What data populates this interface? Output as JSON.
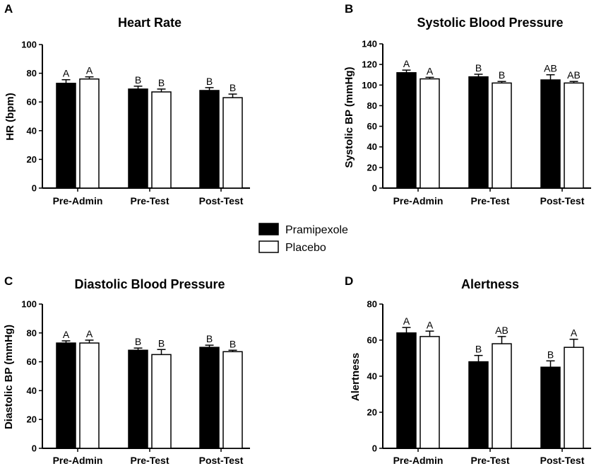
{
  "legend": [
    {
      "name": "Pramipexole",
      "fill": "#000000"
    },
    {
      "name": "Placebo",
      "fill": "#ffffff"
    }
  ],
  "chart_data": [
    {
      "panel": "A",
      "type": "bar",
      "title": "Heart Rate",
      "ylabel": "HR (bpm)",
      "ylim": [
        0,
        100
      ],
      "yticks": [
        0,
        20,
        40,
        60,
        80,
        100
      ],
      "categories": [
        "Pre-Admin",
        "Pre-Test",
        "Post-Test"
      ],
      "series": [
        {
          "name": "Pramipexole",
          "values": [
            73,
            69,
            68
          ],
          "errors": [
            2.5,
            2,
            2
          ],
          "labels": [
            "A",
            "B",
            "B"
          ]
        },
        {
          "name": "Placebo",
          "values": [
            76,
            67,
            63
          ],
          "errors": [
            1.5,
            2,
            2.5
          ],
          "labels": [
            "A",
            "B",
            "B"
          ]
        }
      ]
    },
    {
      "panel": "B",
      "type": "bar",
      "title": "Systolic Blood Pressure",
      "ylabel": "Systolic BP (mmHg)",
      "ylim": [
        0,
        140
      ],
      "yticks": [
        0,
        20,
        40,
        60,
        80,
        100,
        120,
        140
      ],
      "categories": [
        "Pre-Admin",
        "Pre-Test",
        "Post-Test"
      ],
      "series": [
        {
          "name": "Pramipexole",
          "values": [
            112,
            108,
            105
          ],
          "errors": [
            2.5,
            2.5,
            5
          ],
          "labels": [
            "A",
            "B",
            "AB"
          ]
        },
        {
          "name": "Placebo",
          "values": [
            106,
            102,
            102
          ],
          "errors": [
            1.5,
            1.5,
            1.5
          ],
          "labels": [
            "A",
            "B",
            "AB"
          ]
        }
      ]
    },
    {
      "panel": "C",
      "type": "bar",
      "title": "Diastolic Blood Pressure",
      "ylabel": "Diastolic BP (mmHg)",
      "ylim": [
        0,
        100
      ],
      "yticks": [
        0,
        20,
        40,
        60,
        80,
        100
      ],
      "categories": [
        "Pre-Admin",
        "Pre-Test",
        "Post-Test"
      ],
      "series": [
        {
          "name": "Pramipexole",
          "values": [
            73,
            68,
            70
          ],
          "errors": [
            1.5,
            1.5,
            1.5
          ],
          "labels": [
            "A",
            "B",
            "B"
          ]
        },
        {
          "name": "Placebo",
          "values": [
            73,
            65,
            67
          ],
          "errors": [
            2,
            3.5,
            1
          ],
          "labels": [
            "A",
            "B",
            "B"
          ]
        }
      ]
    },
    {
      "panel": "D",
      "type": "bar",
      "title": "Alertness",
      "ylabel": "Alertness",
      "ylim": [
        0,
        80
      ],
      "yticks": [
        0,
        20,
        40,
        60,
        80
      ],
      "categories": [
        "Pre-Admin",
        "Pre-Test",
        "Post-Test"
      ],
      "series": [
        {
          "name": "Pramipexole",
          "values": [
            64,
            48,
            45
          ],
          "errors": [
            3,
            3.5,
            3.5
          ],
          "labels": [
            "A",
            "B",
            "B"
          ]
        },
        {
          "name": "Placebo",
          "values": [
            62,
            58,
            56
          ],
          "errors": [
            3,
            4,
            4.5
          ],
          "labels": [
            "A",
            "AB",
            "A"
          ]
        }
      ]
    }
  ]
}
